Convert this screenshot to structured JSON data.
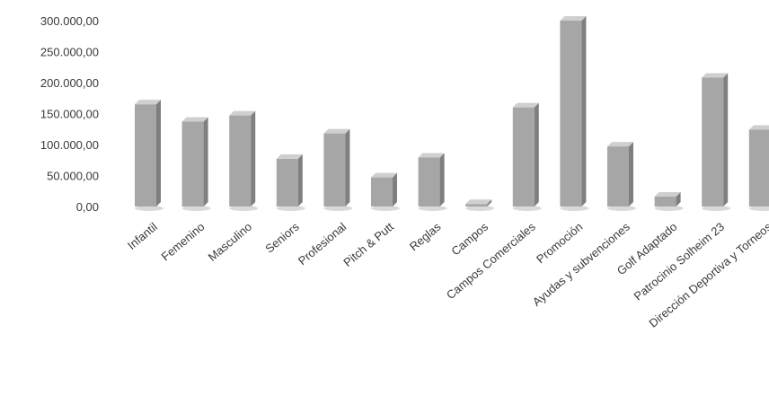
{
  "chart_data": {
    "type": "bar",
    "categories": [
      "Infantil",
      "Femenino",
      "Masculino",
      "Seniors",
      "Profesional",
      "Pitch & Putt",
      "Reglas",
      "Campos",
      "Campos Comerciales",
      "Promoción",
      "Ayudas y subvenciones",
      "Golf Adaptado",
      "Patrocinio Solheim 23",
      "Dirección Deportiva y Torneos"
    ],
    "values": [
      165000,
      137000,
      147000,
      77000,
      118000,
      47000,
      79000,
      4000,
      160000,
      300000,
      97000,
      16000,
      208000,
      124000
    ],
    "ylim": [
      0,
      300000
    ],
    "yticks": [
      0,
      50000,
      100000,
      150000,
      200000,
      250000,
      300000
    ],
    "ytick_labels": [
      "0,00",
      "50.000,00",
      "100.000,00",
      "150.000,00",
      "200.000,00",
      "250.000,00",
      "300.000,00"
    ],
    "title": "",
    "xlabel": "",
    "ylabel": "",
    "grid": false,
    "legend": "none",
    "bar_color": "#a6a6a6",
    "bar_side_color": "#7f7f7f",
    "bar_top_color": "#cfcfcf"
  }
}
